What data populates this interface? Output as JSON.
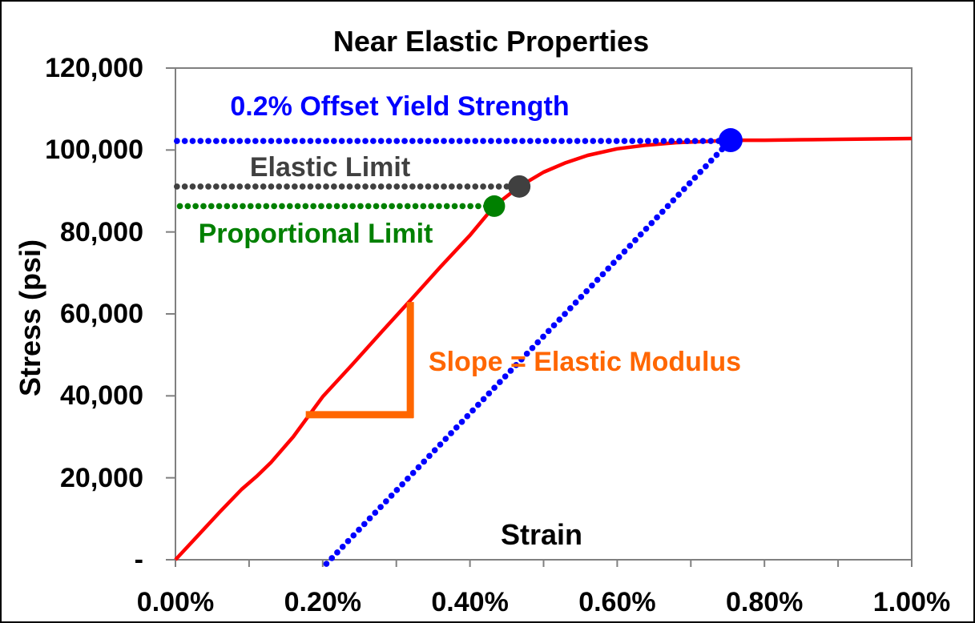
{
  "figure": {
    "title": "Near Elastic Properties",
    "x_axis_title": "Strain",
    "y_axis_title": "Stress (psi)"
  },
  "annotations": {
    "offset_yield": {
      "text": "0.2% Offset Yield Strength",
      "color": "#0000FF"
    },
    "elastic_limit": {
      "text": "Elastic Limit",
      "color": "#404040"
    },
    "proportional_limit": {
      "text": "Proportional Limit",
      "color": "#008000"
    },
    "slope": {
      "text": "Slope = Elastic Modulus",
      "color": "#FF6600"
    }
  },
  "colors": {
    "curve": "#FF0000",
    "offset_series": "#0000FF",
    "elastic_series": "#404040",
    "proportional_series": "#008000",
    "slope_indicator": "#FF6600",
    "axis": "#808080",
    "background": "#FFFFFF",
    "frame": "#000000"
  },
  "chart_data": {
    "type": "line",
    "title": "Near Elastic Properties",
    "xlabel": "Strain",
    "ylabel": "Stress (psi)",
    "x_units": "percent strain",
    "xlim": [
      0,
      1.0
    ],
    "ylim": [
      0,
      120000
    ],
    "grid": false,
    "legend": "none",
    "x_ticks": [
      {
        "value": 0.0,
        "label": "0.00%"
      },
      {
        "value": 0.1,
        "label": ""
      },
      {
        "value": 0.2,
        "label": "0.20%"
      },
      {
        "value": 0.3,
        "label": ""
      },
      {
        "value": 0.4,
        "label": "0.40%"
      },
      {
        "value": 0.5,
        "label": ""
      },
      {
        "value": 0.6,
        "label": "0.60%"
      },
      {
        "value": 0.7,
        "label": ""
      },
      {
        "value": 0.8,
        "label": "0.80%"
      },
      {
        "value": 0.9,
        "label": ""
      },
      {
        "value": 1.0,
        "label": "1.00%"
      }
    ],
    "y_ticks": [
      {
        "value": 0,
        "label": "-"
      },
      {
        "value": 20000,
        "label": "20,000"
      },
      {
        "value": 40000,
        "label": "40,000"
      },
      {
        "value": 60000,
        "label": "60,000"
      },
      {
        "value": 80000,
        "label": "80,000"
      },
      {
        "value": 100000,
        "label": "100,000"
      },
      {
        "value": 120000,
        "label": "120,000"
      }
    ],
    "series": [
      {
        "name": "stress-strain-curve",
        "color": "#FF0000",
        "style": "solid",
        "points": [
          [
            0,
            0
          ],
          [
            0.03,
            5800
          ],
          [
            0.06,
            11600
          ],
          [
            0.09,
            17200
          ],
          [
            0.11,
            20300
          ],
          [
            0.13,
            23800
          ],
          [
            0.16,
            30000
          ],
          [
            0.2,
            39800
          ],
          [
            0.24,
            47600
          ],
          [
            0.28,
            55600
          ],
          [
            0.32,
            63500
          ],
          [
            0.36,
            71500
          ],
          [
            0.4,
            79200
          ],
          [
            0.433,
            86300
          ],
          [
            0.467,
            91100
          ],
          [
            0.5,
            94600
          ],
          [
            0.53,
            96900
          ],
          [
            0.56,
            98700
          ],
          [
            0.6,
            100300
          ],
          [
            0.64,
            101200
          ],
          [
            0.68,
            101800
          ],
          [
            0.72,
            102100
          ],
          [
            0.754,
            102400
          ],
          [
            0.8,
            102400
          ],
          [
            0.85,
            102500
          ],
          [
            0.9,
            102600
          ],
          [
            0.95,
            102700
          ],
          [
            1.0,
            102800
          ]
        ]
      },
      {
        "name": "offset-construction-line",
        "color": "#0000FF",
        "style": "dotted",
        "points": [
          [
            0.205,
            -1000
          ],
          [
            0.752,
            102000
          ]
        ]
      },
      {
        "name": "offset-yield-strength-level",
        "color": "#0000FF",
        "style": "dotted",
        "points": [
          [
            0.002,
            102200
          ],
          [
            0.748,
            102200
          ]
        ]
      },
      {
        "name": "elastic-limit-level",
        "color": "#404040",
        "style": "dotted",
        "points": [
          [
            0.002,
            91100
          ],
          [
            0.455,
            91100
          ]
        ]
      },
      {
        "name": "proportional-limit-level",
        "color": "#008000",
        "style": "dotted",
        "points": [
          [
            0.006,
            86300
          ],
          [
            0.423,
            86300
          ]
        ]
      }
    ],
    "markers": [
      {
        "name": "offset-yield-point",
        "x": 0.754,
        "y": 102400,
        "color": "#0000FF",
        "radius": 15
      },
      {
        "name": "elastic-limit-point",
        "x": 0.467,
        "y": 91100,
        "color": "#404040",
        "radius": 14
      },
      {
        "name": "proportional-limit-point",
        "x": 0.433,
        "y": 86300,
        "color": "#008000",
        "radius": 13.5
      }
    ],
    "slope_indicator": {
      "color": "#FF6600",
      "vertical": {
        "x": 0.319,
        "y1": 35400,
        "y2": 62900
      },
      "horizontal": {
        "y": 35400,
        "x1": 0.177,
        "x2": 0.319
      }
    }
  }
}
